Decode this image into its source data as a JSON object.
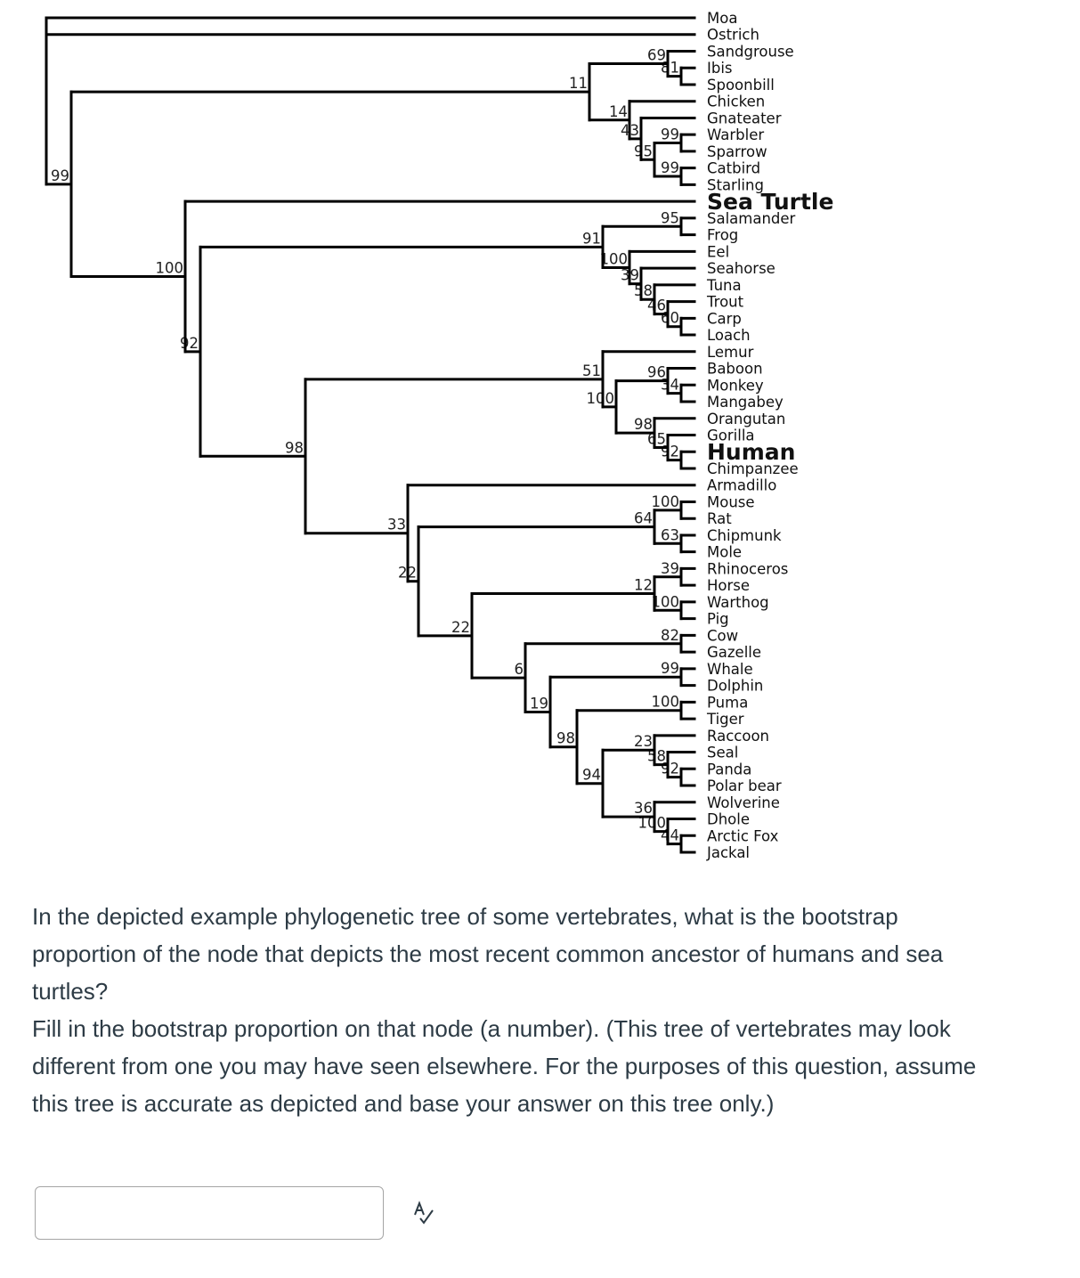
{
  "tree": {
    "highlight_color": "#e0201b",
    "root": {
      "children": [
        {
          "name": "Moa"
        },
        {
          "name": "Ostrich"
        },
        {
          "bs": 99,
          "children": [
            {
              "bs": 11,
              "children": [
                {
                  "bs": 69,
                  "children": [
                    {
                      "name": "Sandgrouse"
                    },
                    {
                      "bs": 81,
                      "children": [
                        {
                          "name": "Ibis"
                        },
                        {
                          "name": "Spoonbill"
                        }
                      ]
                    }
                  ]
                },
                {
                  "bs": 14,
                  "children": [
                    {
                      "name": "Chicken"
                    },
                    {
                      "bs": 43,
                      "children": [
                        {
                          "name": "Gnateater"
                        },
                        {
                          "bs": 95,
                          "children": [
                            {
                              "bs": 99,
                              "children": [
                                {
                                  "name": "Warbler"
                                },
                                {
                                  "name": "Sparrow"
                                }
                              ]
                            },
                            {
                              "bs": 99,
                              "children": [
                                {
                                  "name": "Catbird"
                                },
                                {
                                  "name": "Starling"
                                }
                              ]
                            }
                          ]
                        }
                      ]
                    }
                  ]
                }
              ]
            },
            {
              "bs": 100,
              "children": [
                {
                  "name": "Sea Turtle",
                  "highlight": true
                },
                {
                  "bs": 92,
                  "children": [
                    {
                      "bs": 91,
                      "children": [
                        {
                          "bs": 95,
                          "children": [
                            {
                              "name": "Salamander"
                            },
                            {
                              "name": "Frog"
                            }
                          ]
                        },
                        {
                          "bs": 100,
                          "children": [
                            {
                              "name": "Eel"
                            },
                            {
                              "bs": 39,
                              "children": [
                                {
                                  "name": "Seahorse"
                                },
                                {
                                  "bs": 58,
                                  "children": [
                                    {
                                      "name": "Tuna"
                                    },
                                    {
                                      "bs": 46,
                                      "children": [
                                        {
                                          "name": "Trout"
                                        },
                                        {
                                          "bs": 60,
                                          "children": [
                                            {
                                              "name": "Carp"
                                            },
                                            {
                                              "name": "Loach"
                                            }
                                          ]
                                        }
                                      ]
                                    }
                                  ]
                                }
                              ]
                            }
                          ]
                        }
                      ]
                    },
                    {
                      "bs": 98,
                      "children": [
                        {
                          "bs": 51,
                          "children": [
                            {
                              "name": "Lemur"
                            },
                            {
                              "bs": 100,
                              "children": [
                                {
                                  "bs": 96,
                                  "children": [
                                    {
                                      "name": "Baboon"
                                    },
                                    {
                                      "bs": 34,
                                      "children": [
                                        {
                                          "name": "Monkey"
                                        },
                                        {
                                          "name": "Mangabey"
                                        }
                                      ]
                                    }
                                  ]
                                },
                                {
                                  "bs": 98,
                                  "children": [
                                    {
                                      "name": "Orangutan"
                                    },
                                    {
                                      "bs": 65,
                                      "children": [
                                        {
                                          "name": "Gorilla"
                                        },
                                        {
                                          "bs": 92,
                                          "children": [
                                            {
                                              "name": "Human",
                                              "highlight": true
                                            },
                                            {
                                              "name": "Chimpanzee"
                                            }
                                          ]
                                        }
                                      ]
                                    }
                                  ]
                                }
                              ]
                            }
                          ]
                        },
                        {
                          "bs": 33,
                          "children": [
                            {
                              "name": "Armadillo"
                            },
                            {
                              "bs": 22,
                              "children": [
                                {
                                  "bs": 64,
                                  "children": [
                                    {
                                      "bs": 100,
                                      "children": [
                                        {
                                          "name": "Mouse"
                                        },
                                        {
                                          "name": "Rat"
                                        }
                                      ]
                                    },
                                    {
                                      "bs": 63,
                                      "children": [
                                        {
                                          "name": "Chipmunk"
                                        },
                                        {
                                          "name": "Mole"
                                        }
                                      ]
                                    }
                                  ]
                                },
                                {
                                  "bs": 22,
                                  "children": [
                                    {
                                      "bs": 12,
                                      "children": [
                                        {
                                          "bs": 39,
                                          "children": [
                                            {
                                              "name": "Rhinoceros"
                                            },
                                            {
                                              "name": "Horse"
                                            }
                                          ]
                                        },
                                        {
                                          "bs": 100,
                                          "children": [
                                            {
                                              "name": "Warthog"
                                            },
                                            {
                                              "name": "Pig"
                                            }
                                          ]
                                        }
                                      ]
                                    },
                                    {
                                      "bs": 6,
                                      "children": [
                                        {
                                          "bs": 82,
                                          "children": [
                                            {
                                              "name": "Cow"
                                            },
                                            {
                                              "name": "Gazelle"
                                            }
                                          ]
                                        },
                                        {
                                          "bs": 19,
                                          "children": [
                                            {
                                              "bs": 99,
                                              "children": [
                                                {
                                                  "name": "Whale"
                                                },
                                                {
                                                  "name": "Dolphin"
                                                }
                                              ]
                                            },
                                            {
                                              "bs": 98,
                                              "children": [
                                                {
                                                  "bs": 100,
                                                  "children": [
                                                    {
                                                      "name": "Puma"
                                                    },
                                                    {
                                                      "name": "Tiger"
                                                    }
                                                  ]
                                                },
                                                {
                                                  "bs": 94,
                                                  "children": [
                                                    {
                                                      "bs": 23,
                                                      "children": [
                                                        {
                                                          "name": "Raccoon"
                                                        },
                                                        {
                                                          "bs": 58,
                                                          "children": [
                                                            {
                                                              "name": "Seal"
                                                            },
                                                            {
                                                              "bs": 92,
                                                              "children": [
                                                                {
                                                                  "name": "Panda"
                                                                },
                                                                {
                                                                  "name": "Polar bear"
                                                                }
                                                              ]
                                                            }
                                                          ]
                                                        }
                                                      ]
                                                    },
                                                    {
                                                      "bs": 36,
                                                      "children": [
                                                        {
                                                          "name": "Wolverine"
                                                        },
                                                        {
                                                          "bs": 100,
                                                          "children": [
                                                            {
                                                              "name": "Dhole"
                                                            },
                                                            {
                                                              "bs": 44,
                                                              "children": [
                                                                {
                                                                  "name": "Arctic Fox"
                                                                },
                                                                {
                                                                  "name": "Jackal"
                                                                }
                                                              ]
                                                            }
                                                          ]
                                                        }
                                                      ]
                                                    }
                                                  ]
                                                }
                                              ]
                                            }
                                          ]
                                        }
                                      ]
                                    }
                                  ]
                                }
                              ]
                            }
                          ]
                        }
                      ]
                    }
                  ]
                }
              ]
            }
          ]
        }
      ]
    }
  },
  "question": {
    "paragraph1": "In the depicted example phylogenetic tree of some vertebrates, what is the bootstrap proportion of the node that depicts the most recent common ancestor of humans and sea turtles?",
    "paragraph2": "Fill in the bootstrap proportion on that node (a number). (This tree of vertebrates may look different from one you may have seen elsewhere. For the purposes of this question, assume this tree is accurate as depicted and base your answer on this tree only.)"
  },
  "answer": {
    "value": "",
    "placeholder": ""
  },
  "icons": {
    "spellcheck": "spellcheck-icon"
  }
}
